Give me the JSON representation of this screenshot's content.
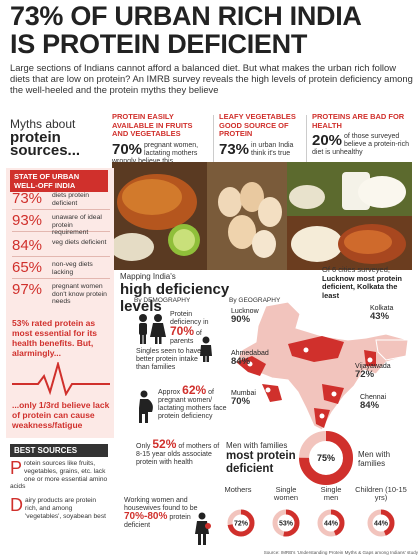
{
  "headline": {
    "line1": "73% OF URBAN RICH INDIA",
    "line2": "IS PROTEIN DEFICIENT"
  },
  "intro": "Large sections of Indians cannot afford a balanced diet. But what makes the urban rich follow diets that are low on protein? An IMRB survey reveals the high levels of protein deficiency among the well-heeled and the protein myths they believe",
  "myths": {
    "label_top": "Myths about",
    "label_bold": "protein sources...",
    "items": [
      {
        "head": "PROTEIN EASILY AVAILABLE IN FRUITS AND VEGETABLES",
        "pct": "70%",
        "text": "pregnant women, lactating mothers wrongly believe this"
      },
      {
        "head": "LEAFY VEGETABLES GOOD SOURCE OF PROTEIN",
        "pct": "73%",
        "text": "in urban India think it's true"
      },
      {
        "head": "PROTEINS ARE BAD FOR HEALTH",
        "pct": "20%",
        "text": "of those surveyed believe a protein-rich diet is unhealthy"
      }
    ]
  },
  "state": {
    "head": "STATE OF URBAN WELL-OFF INDIA",
    "stats": [
      {
        "pct": "73%",
        "label": "diets protein deficient"
      },
      {
        "pct": "93%",
        "label": "unaware of ideal protein requirement"
      },
      {
        "pct": "84%",
        "label": "veg diets deficient"
      },
      {
        "pct": "65%",
        "label": "non-veg diets lacking"
      },
      {
        "pct": "97%",
        "label": "pregnant women don't know protein needs"
      }
    ],
    "alarm": "53% rated protein as most essential for its health benefits. But, alarmingly...",
    "weak": "...only 1/3rd believe lack of protein can cause weakness/fatigue"
  },
  "best_sources": {
    "head": "BEST SOURCES",
    "items": [
      {
        "cap": "P",
        "text": "rotein sources like fruits, vegetables, grains, etc. lack one or more essential amino acids"
      },
      {
        "cap": "D",
        "text": "airy products are protein rich, and among 'vegetables', soyabean best"
      }
    ]
  },
  "levels": {
    "mapping": "Mapping India's",
    "title": "high deficiency levels",
    "by_demo": "By DEMOGRAPHY",
    "by_geo": "By GEOGRAPHY",
    "parents": {
      "text1": "Protein deficiency in",
      "pct": "70%",
      "text2": "of parents"
    },
    "singles": "Singles seen to have better protein intake than families",
    "pregnant": {
      "text1": "Approx",
      "pct": "62%",
      "text2": "of pregnant women/ lactating mothers face protein deficiency"
    },
    "mothers": {
      "text1": "Only",
      "pct": "52%",
      "text2": "of mothers of 8-15 year olds associate protein with health"
    },
    "working": {
      "text": "Working women and housewives found to be",
      "pct": "70%-80%",
      "text2": "protein deficient"
    }
  },
  "cities_note": {
    "text1": "Of 6 cities surveyed,",
    "bold": "Lucknow most protein deficient, Kolkata the least"
  },
  "cities": [
    {
      "name": "Lucknow",
      "value": "90%"
    },
    {
      "name": "Kolkata",
      "value": "43%"
    },
    {
      "name": "Ahmedabad",
      "value": "84%"
    },
    {
      "name": "Vijayawada",
      "value": "72%"
    },
    {
      "name": "Mumbai",
      "value": "70%"
    },
    {
      "name": "Chennai",
      "value": "84%"
    }
  ],
  "families": {
    "text": "Men with families",
    "bold": "most protein deficient",
    "donut_value": 75,
    "donut_label": "75%",
    "side_label": "Men with families"
  },
  "categories": [
    {
      "label": "Mothers",
      "value": 72,
      "text": "72%"
    },
    {
      "label": "Single women",
      "value": 53,
      "text": "53%"
    },
    {
      "label": "Single men",
      "value": 44,
      "text": "44%"
    },
    {
      "label": "Children (10-15 yrs)",
      "value": 44,
      "text": "44%"
    }
  ],
  "source": "Source: IMRB's 'Understanding Protein Myths & Gaps among Indians' study",
  "colors": {
    "accent": "#d0302c",
    "panel": "#fce9e6",
    "map_light": "#f2c4bd"
  }
}
